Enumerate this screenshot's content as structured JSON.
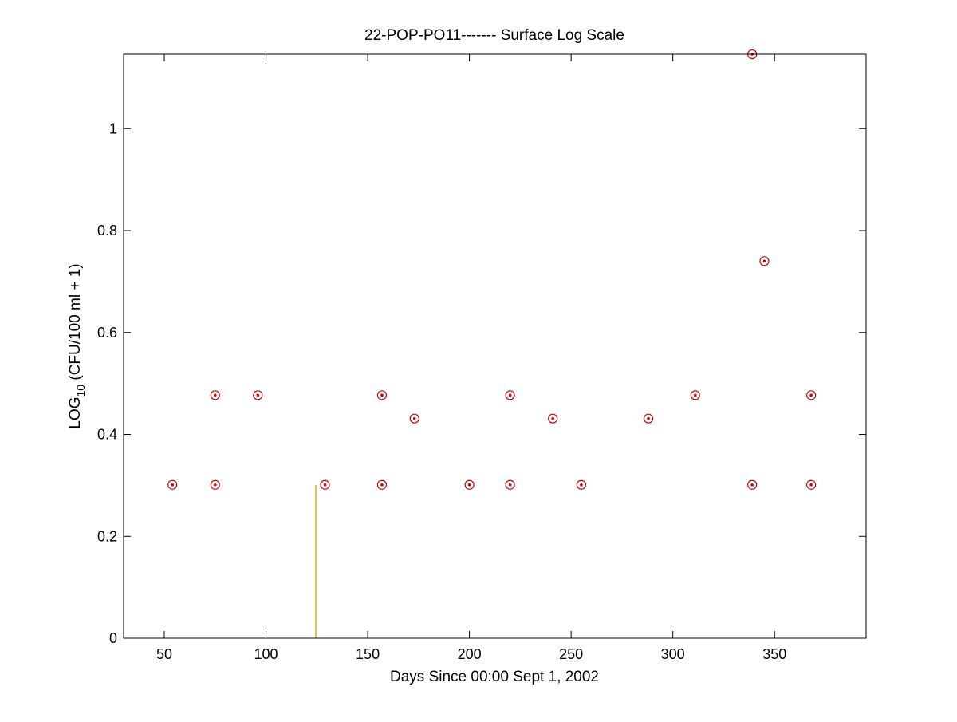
{
  "chart_data": {
    "type": "scatter",
    "title": "22-POP-PO11------- Surface Log Scale",
    "xlabel": "Days Since 00:00 Sept 1, 2002",
    "ylabel": {
      "prefix": "LOG",
      "subscript": "10",
      "suffix": " (CFU/100 ml + 1)"
    },
    "xlim": [
      30,
      395
    ],
    "ylim": [
      0,
      1.146
    ],
    "xticks": [
      50,
      100,
      150,
      200,
      250,
      300,
      350
    ],
    "yticks": [
      0,
      0.2,
      0.4,
      0.6,
      0.8,
      1
    ],
    "ytick_labels": [
      "0",
      "0.2",
      "0.4",
      "0.6",
      "0.8",
      "1"
    ],
    "marker_color": "#cc0000",
    "points": [
      {
        "x": 54,
        "y": 0.301
      },
      {
        "x": 75,
        "y": 0.477
      },
      {
        "x": 75,
        "y": 0.301
      },
      {
        "x": 96,
        "y": 0.477
      },
      {
        "x": 129,
        "y": 0.301
      },
      {
        "x": 157,
        "y": 0.477
      },
      {
        "x": 157,
        "y": 0.301
      },
      {
        "x": 173,
        "y": 0.431
      },
      {
        "x": 200,
        "y": 0.301
      },
      {
        "x": 220,
        "y": 0.477
      },
      {
        "x": 220,
        "y": 0.301
      },
      {
        "x": 241,
        "y": 0.431
      },
      {
        "x": 255,
        "y": 0.301
      },
      {
        "x": 288,
        "y": 0.431
      },
      {
        "x": 311,
        "y": 0.477
      },
      {
        "x": 339,
        "y": 1.146
      },
      {
        "x": 339,
        "y": 0.301
      },
      {
        "x": 345,
        "y": 0.74
      },
      {
        "x": 368,
        "y": 0.477
      },
      {
        "x": 368,
        "y": 0.301
      }
    ],
    "vertical_bar": {
      "x": 124.5,
      "y": 0.301,
      "color": "#e0b000"
    },
    "grid": false
  }
}
